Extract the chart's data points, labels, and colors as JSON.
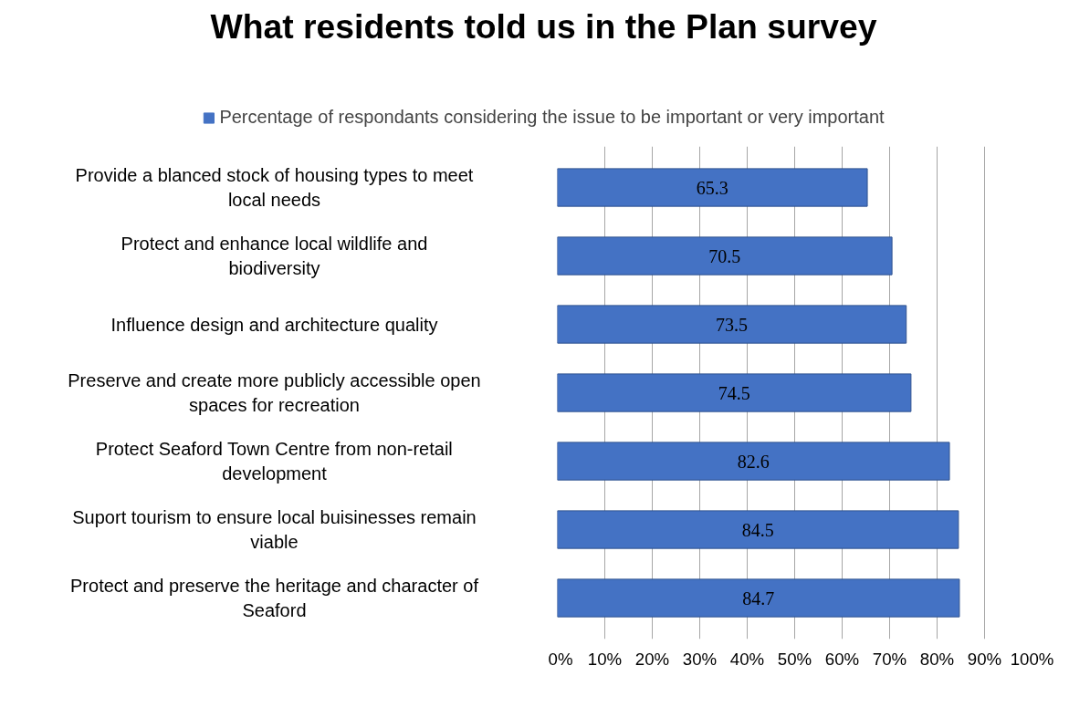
{
  "chart_data": {
    "type": "bar",
    "orientation": "horizontal",
    "title": "What residents told us in the Plan survey",
    "categories": [
      "Provide a blanced stock of housing types to meet local needs",
      "Protect and enhance local wildlife and biodiversity",
      "Influence design and architecture quality",
      "Preserve and create more publicly accessible open spaces for recreation",
      "Protect Seaford Town Centre from non-retail development",
      "Suport tourism to ensure local buisinesses remain viable",
      "Protect and preserve the heritage and character of Seaford"
    ],
    "series": [
      {
        "name": "Percentage of respondants considering the issue to be important or very important",
        "color": "#4472c4",
        "values": [
          65.3,
          70.5,
          73.5,
          74.5,
          82.6,
          84.5,
          84.7
        ]
      }
    ],
    "xlim": [
      0,
      100
    ],
    "xticks": [
      {
        "value": 0,
        "label": "0%"
      },
      {
        "value": 10,
        "label": "10%"
      },
      {
        "value": 20,
        "label": "20%"
      },
      {
        "value": 30,
        "label": "30%"
      },
      {
        "value": 40,
        "label": "40%"
      },
      {
        "value": 50,
        "label": "50%"
      },
      {
        "value": 60,
        "label": "60%"
      },
      {
        "value": 70,
        "label": "70%"
      },
      {
        "value": 80,
        "label": "80%"
      },
      {
        "value": 90,
        "label": "90%"
      },
      {
        "value": 100,
        "label": "100%"
      }
    ],
    "grid": "x",
    "legend": "top",
    "data_labels": true
  }
}
